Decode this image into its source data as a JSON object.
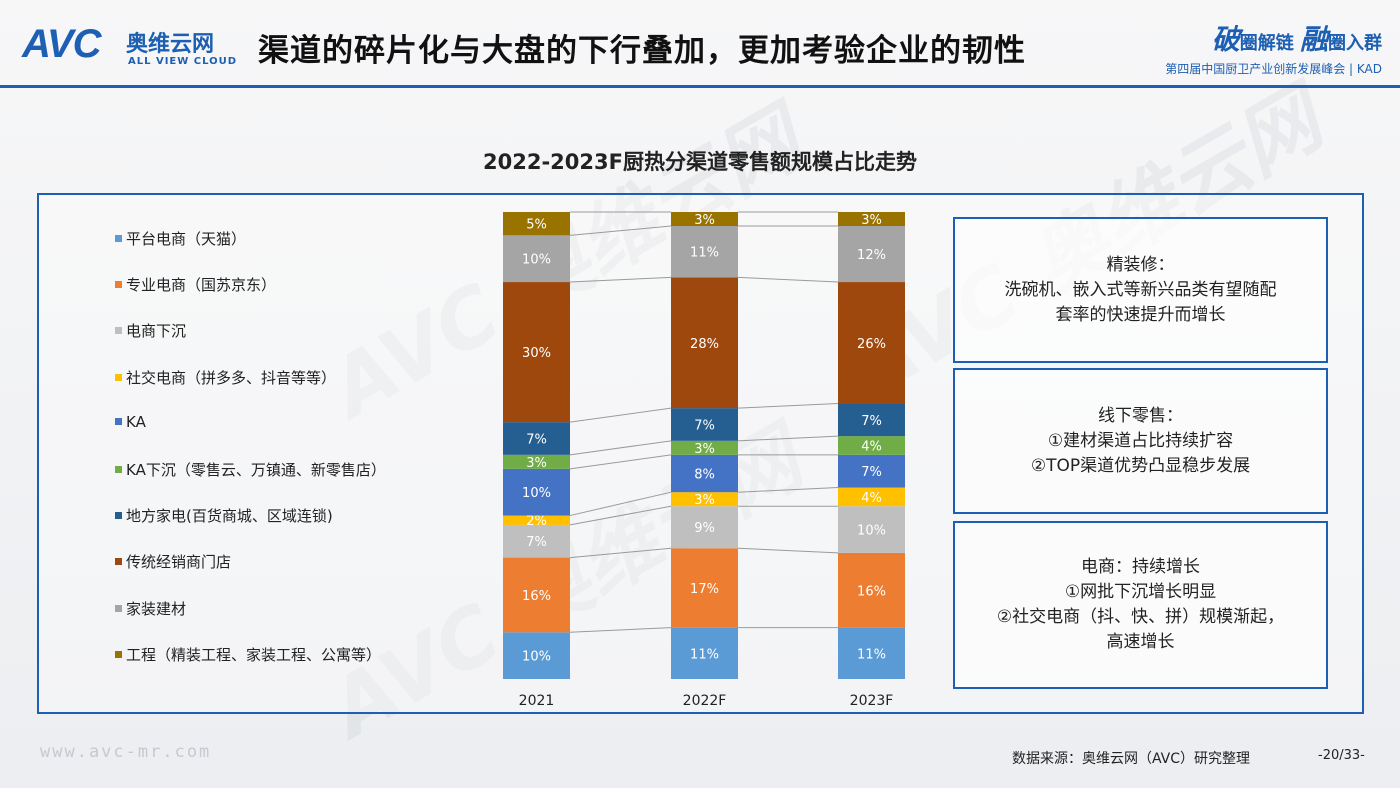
{
  "header": {
    "logo_mark": "AVC",
    "logo_cn": "奥维云网",
    "logo_en": "ALL VIEW CLOUD",
    "title": "渠道的碎片化与大盘的下行叠加，更加考验企业的韧性",
    "event_top_1": "破",
    "event_top_2": "圈解链",
    "event_top_3": "融",
    "event_top_4": "圈入群",
    "event_bottom": "第四届中国厨卫产业创新发展峰会 | KAD"
  },
  "colors": {
    "brand": "#1d5fb2",
    "platform": "#5b9bd5",
    "pro": "#ed7d31",
    "sink": "#bfbfbf",
    "social": "#ffc000",
    "ka": "#4472c4",
    "ka_sink": "#70ad47",
    "local": "#255e91",
    "dealer": "#9e480e",
    "deco": "#a5a5a5",
    "project": "#997300"
  },
  "chart_data": {
    "type": "bar",
    "stacked": true,
    "percent": true,
    "title": "2022-2023F厨热分渠道零售额规模占比走势",
    "categories": [
      "2021",
      "2022F",
      "2023F"
    ],
    "series": [
      {
        "name": "平台电商（天猫）",
        "color": "#5b9bd5",
        "values": [
          10,
          11,
          11
        ],
        "labels": [
          "10%",
          "11%",
          "11%"
        ]
      },
      {
        "name": "专业电商（国苏京东）",
        "color": "#ed7d31",
        "values": [
          16,
          17,
          16
        ],
        "labels": [
          "16%",
          "17%",
          "16%"
        ]
      },
      {
        "name": "电商下沉",
        "color": "#bfbfbf",
        "values": [
          7,
          9,
          10
        ],
        "labels": [
          "7%",
          "9%",
          "10%"
        ]
      },
      {
        "name": "社交电商（拼多多、抖音等等）",
        "color": "#ffc000",
        "values": [
          2,
          3,
          4
        ],
        "labels": [
          "2%",
          "3%",
          "4%"
        ]
      },
      {
        "name": "KA",
        "color": "#4472c4",
        "values": [
          10,
          8,
          7
        ],
        "labels": [
          "10%",
          "8%",
          "7%"
        ]
      },
      {
        "name": "KA下沉（零售云、万镇通、新零售店）",
        "color": "#70ad47",
        "values": [
          3,
          3,
          4
        ],
        "labels": [
          "3%",
          "3%",
          "4%"
        ]
      },
      {
        "name": "地方家电(百货商城、区域连锁)",
        "color": "#255e91",
        "values": [
          7,
          7,
          7
        ],
        "labels": [
          "7%",
          "7%",
          "7%"
        ]
      },
      {
        "name": "传统经销商门店",
        "color": "#9e480e",
        "values": [
          30,
          28,
          26
        ],
        "labels": [
          "30%",
          "28%",
          "26%"
        ]
      },
      {
        "name": "家装建材",
        "color": "#a5a5a5",
        "values": [
          10,
          11,
          12
        ],
        "labels": [
          "10%",
          "11%",
          "12%"
        ]
      },
      {
        "name": "工程（精装工程、家装工程、公寓等）",
        "color": "#997300",
        "values": [
          5,
          3,
          3
        ],
        "labels": [
          "5%",
          "3%",
          "3%"
        ]
      }
    ],
    "ylim": [
      0,
      100
    ],
    "legend_position": "left",
    "grid": false
  },
  "insights": [
    {
      "lines": [
        "精装修：",
        "洗碗机、嵌入式等新兴品类有望随配",
        "套率的快速提升而增长"
      ]
    },
    {
      "lines": [
        "线下零售：",
        "①建材渠道占比持续扩容",
        "②TOP渠道优势凸显稳步发展"
      ]
    },
    {
      "lines": [
        "电商：持续增长",
        "①网批下沉增长明显",
        "②社交电商（抖、快、拼）规模渐起，",
        "高速增长"
      ]
    }
  ],
  "footer": {
    "url": "www.avc-mr.com",
    "source": "数据来源：奥维云网（AVC）研究整理",
    "page": "-20/33-"
  }
}
